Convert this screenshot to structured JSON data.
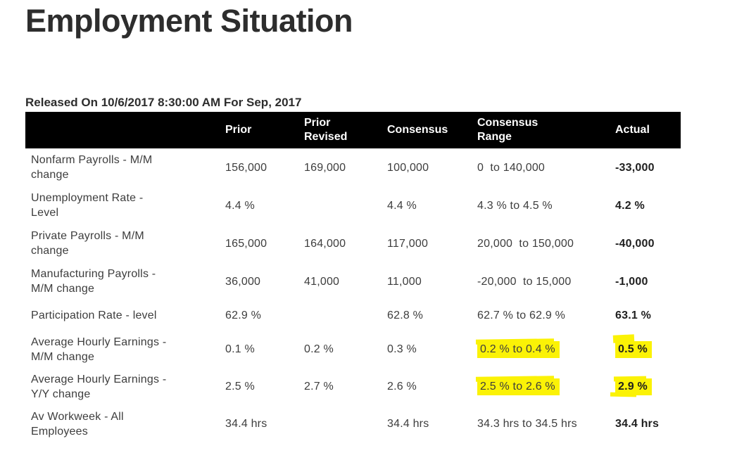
{
  "page": {
    "title": "Employment Situation",
    "released_line": "Released On 10/6/2017 8:30:00 AM For Sep, 2017"
  },
  "colors": {
    "header_bg": "#000000",
    "header_text": "#ffffff",
    "body_text": "#3d3d3d",
    "highlight_yellow": "#fbf206"
  },
  "table": {
    "headers": [
      "",
      "Prior",
      "Prior\nRevised",
      "Consensus",
      "Consensus\nRange",
      "Actual"
    ],
    "rows": [
      {
        "label": "Nonfarm Payrolls - M/M\nchange",
        "prior": "156,000",
        "prior_revised": "169,000",
        "consensus": "100,000",
        "consensus_range": "0  to 140,000",
        "actual": "-33,000",
        "highlighted": false
      },
      {
        "label": "Unemployment Rate -\nLevel",
        "prior": "4.4 %",
        "prior_revised": "",
        "consensus": "4.4 %",
        "consensus_range": "4.3 % to 4.5 %",
        "actual": "4.2 %",
        "highlighted": false
      },
      {
        "label": "Private Payrolls - M/M\nchange",
        "prior": "165,000",
        "prior_revised": "164,000",
        "consensus": "117,000",
        "consensus_range": "20,000  to 150,000",
        "actual": "-40,000",
        "highlighted": false
      },
      {
        "label": "Manufacturing Payrolls -\nM/M change",
        "prior": "36,000",
        "prior_revised": "41,000",
        "consensus": "11,000",
        "consensus_range": "-20,000  to 15,000",
        "actual": "-1,000",
        "highlighted": false
      },
      {
        "label": "Participation Rate - level",
        "prior": "62.9 %",
        "prior_revised": "",
        "consensus": "62.8 %",
        "consensus_range": "62.7 % to 62.9 %",
        "actual": "63.1 %",
        "highlighted": false
      },
      {
        "label": "Average Hourly Earnings -\nM/M change",
        "prior": "0.1 %",
        "prior_revised": "0.2 %",
        "consensus": "0.3 %",
        "consensus_range": "0.2 % to 0.4 %",
        "actual": "0.5 %",
        "highlighted": true
      },
      {
        "label": "Average Hourly Earnings -\nY/Y change",
        "prior": "2.5 %",
        "prior_revised": "2.7 %",
        "consensus": "2.6 %",
        "consensus_range": "2.5 % to 2.6 %",
        "actual": "2.9 %",
        "highlighted": true
      },
      {
        "label": "Av Workweek - All\nEmployees",
        "prior": "34.4 hrs",
        "prior_revised": "",
        "consensus": "34.4 hrs",
        "consensus_range": "34.3 hrs to 34.5 hrs",
        "actual": "34.4 hrs",
        "highlighted": false
      }
    ]
  }
}
